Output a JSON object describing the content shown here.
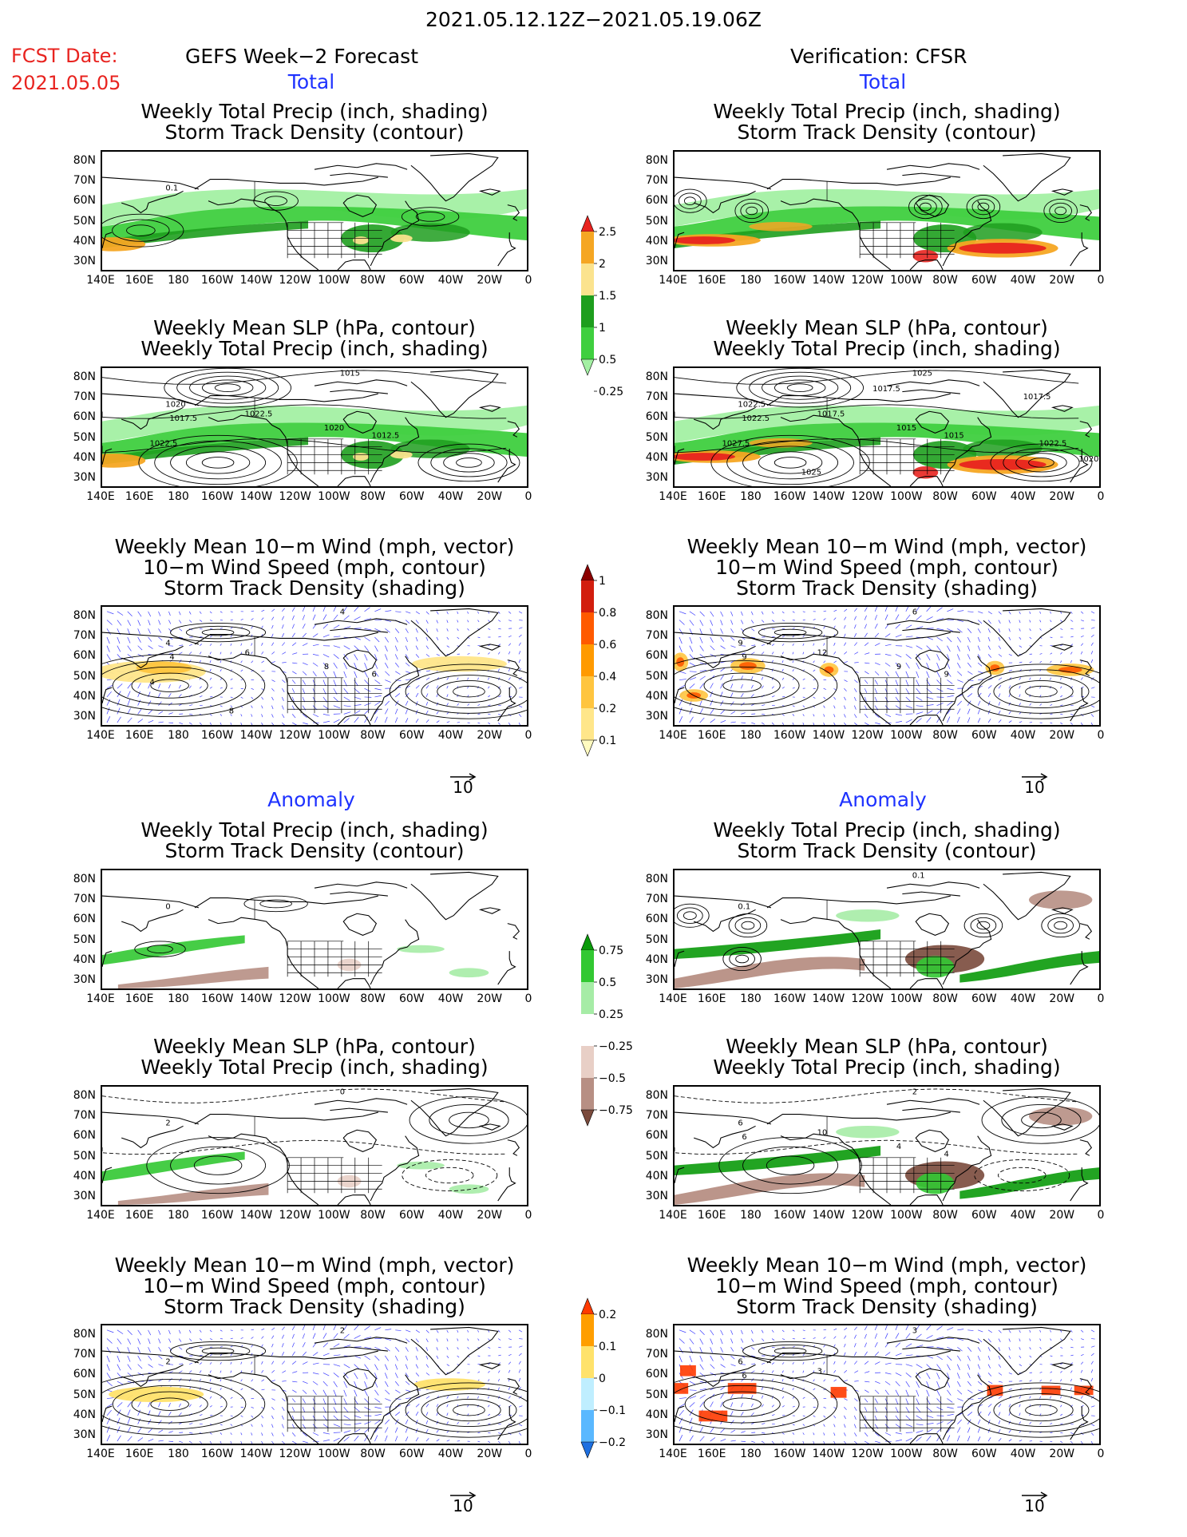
{
  "header": {
    "date_range": "2021.05.12.12Z−2021.05.19.06Z",
    "fcst_label": "FCST Date:",
    "fcst_date": "2021.05.05",
    "left_title": "GEFS Week−2 Forecast",
    "right_title": "Verification: CFSR"
  },
  "sections": {
    "total": "Total",
    "anomaly": "Anomaly"
  },
  "panel_titles": {
    "precip_storm": "Weekly Total Precip (inch, shading)\nStorm Track Density (contour)",
    "slp_precip": "Weekly Mean SLP (hPa, contour)\nWeekly Total Precip (inch, shading)",
    "wind_storm": "Weekly Mean 10−m Wind (mph, vector)\n10−m Wind Speed (mph, contour)\nStorm Track Density (shading)"
  },
  "axes": {
    "lat_labels": [
      "80N",
      "70N",
      "60N",
      "50N",
      "40N",
      "30N"
    ],
    "lon_labels": [
      "140E",
      "160E",
      "180",
      "160W",
      "140W",
      "120W",
      "100W",
      "80W",
      "60W",
      "40W",
      "20W",
      "0"
    ]
  },
  "vector_ref": "10",
  "contour_labels": {
    "fc_total_precip": [
      "0.1"
    ],
    "fc_total_slp": [
      "1020",
      "1015",
      "1017.5",
      "1022.5",
      "1020",
      "1012.5",
      "1022.5"
    ],
    "fc_total_wind": [
      "4",
      "4",
      "4",
      "6",
      "8",
      "6",
      "4",
      "8"
    ],
    "vf_total_slp": [
      "1022.5",
      "1025",
      "1022.5",
      "1017.5",
      "1015",
      "1015",
      "1027.5",
      "1025",
      "1017.5",
      "1022.5",
      "1020",
      "1017.5"
    ],
    "vf_total_wind": [
      "9",
      "6",
      "9",
      "12",
      "9",
      "9"
    ],
    "fc_anom_precip": [
      "0"
    ],
    "fc_anom_slp": [
      "2",
      "0"
    ],
    "fc_anom_wind": [
      "2",
      "2"
    ],
    "vf_anom_precip": [
      "0.1",
      "0.1"
    ],
    "vf_anom_slp": [
      "6",
      "2",
      "6",
      "10",
      "4",
      "4"
    ],
    "vf_anom_wind": [
      "6",
      "3",
      "6",
      "3"
    ]
  },
  "colorbars": {
    "total_precip": {
      "labels": [
        "2.5",
        "2",
        "1.5",
        "1",
        "0.5",
        "0.25"
      ],
      "colors": [
        "#e8231f",
        "#f5a623",
        "#fbe38e",
        "#1e9e1e",
        "#3fcf3f",
        "#a3f0a3"
      ]
    },
    "total_storm": {
      "labels": [
        "1",
        "0.8",
        "0.6",
        "0.4",
        "0.2",
        "0.1"
      ],
      "colors": [
        "#8b0000",
        "#d21e0e",
        "#ff5a00",
        "#ff9a00",
        "#ffc53f",
        "#ffe68a",
        "#fffbc0"
      ]
    },
    "anom_precip": {
      "labels": [
        "0.75",
        "0.5",
        "0.25",
        "−0.25",
        "−0.5",
        "−0.75"
      ],
      "colors": [
        "#0a9a0a",
        "#32c832",
        "#a6eca6",
        "#ffffff",
        "#e8cfc6",
        "#b78f84",
        "#7a4a3c"
      ]
    },
    "anom_storm": {
      "labels": [
        "0.2",
        "0.1",
        "0",
        "−0.1",
        "−0.2"
      ],
      "colors": [
        "#ff3a00",
        "#ff9e00",
        "#ffe26b",
        "#bfeeff",
        "#5ab8ff",
        "#1e6fe0"
      ]
    }
  }
}
